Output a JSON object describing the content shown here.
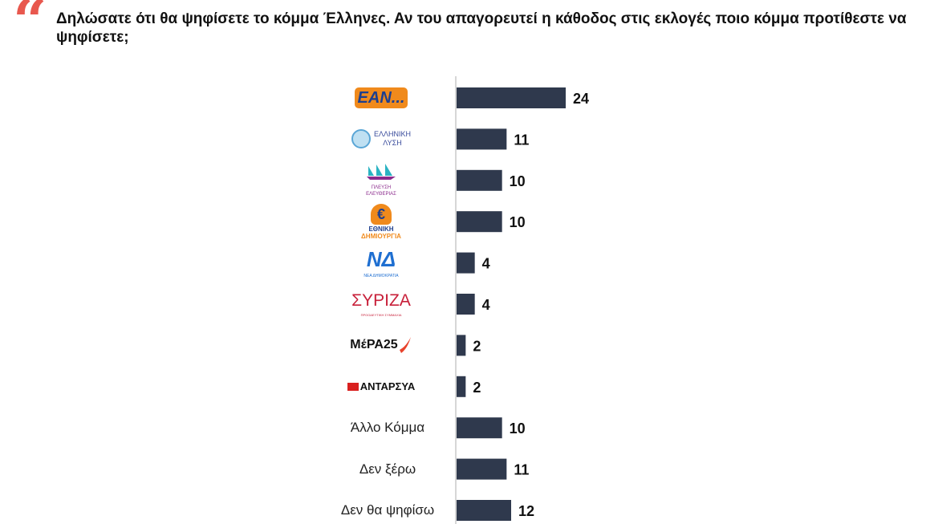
{
  "question": {
    "quote_mark": "“",
    "text": "Δηλώσατε ότι θα ψηφίσετε το κόμμα Έλληνες. Αν του απαγορευτεί η κάθοδος στις εκλογές ποιο κόμμα προτίθεστε να ψηφίσετε;"
  },
  "colors": {
    "bar": "#2f394d",
    "axis": "#c8c8c8",
    "quote": "#e8584e"
  },
  "chart_data": {
    "type": "bar",
    "orientation": "horizontal",
    "title": "Δηλώσατε ότι θα ψηφίσετε το κόμμα Έλληνες. Αν του απαγορευτεί η κάθοδος στις εκλογές ποιο κόμμα προτίθεστε να ψηφίσετε;",
    "categories": [
      "ΕΑΝ...",
      "Ελληνική Λύση",
      "Πλεύση Ελευθερίας",
      "Εθνική Δημιουργία",
      "Νέα Δημοκρατία",
      "ΣΥΡΙΖΑ",
      "ΜέΡΑ25",
      "ΑΝΤΑΡΣΥΑ",
      "Άλλο Κόμμα",
      "Δεν ξέρω",
      "Δεν θα ψηφίσω"
    ],
    "values": [
      24,
      11,
      10,
      10,
      4,
      4,
      2,
      2,
      10,
      11,
      12
    ],
    "category_is_logo": [
      true,
      true,
      true,
      true,
      true,
      true,
      true,
      true,
      false,
      false,
      false
    ],
    "xlabel": "",
    "ylabel": "",
    "xlim": [
      0,
      24
    ],
    "grid": false,
    "legend": "none"
  },
  "logos": {
    "ean": "EAN...",
    "ellinikilysi": [
      "ΕΛΛΗΝΙΚΗ",
      "ΛΥΣΗ"
    ],
    "plefsi": [
      "ΠΛΕΥΣΗ",
      "ΕΛΕΥΘΕΡΙΑΣ"
    ],
    "ethniki": [
      "ΕΘΝΙΚΗ",
      "ΔΗΜΙΟΥΡΓΙΑ"
    ],
    "nd": [
      "ΝΔ",
      "ΝΕΑ ΔΗΜΟΚΡΑΤΙΑ"
    ],
    "syriza": [
      "ΣΥΡΙΖΑ",
      "ΠΡΟΟΔΕΥΤΙΚΗ ΣΥΜΜΑΧΙΑ"
    ],
    "mera25": "ΜέΡΑ25",
    "antarsya": "ΑΝΤΑΡΣΥΑ"
  }
}
